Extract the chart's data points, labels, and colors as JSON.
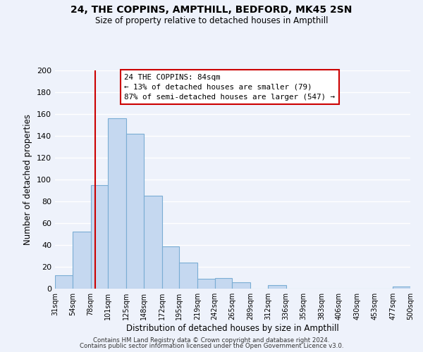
{
  "title": "24, THE COPPINS, AMPTHILL, BEDFORD, MK45 2SN",
  "subtitle": "Size of property relative to detached houses in Ampthill",
  "xlabel": "Distribution of detached houses by size in Ampthill",
  "ylabel": "Number of detached properties",
  "bar_color": "#c5d8f0",
  "bar_edge_color": "#7aadd4",
  "background_color": "#eef2fb",
  "grid_color": "#ffffff",
  "bins": [
    31,
    54,
    78,
    101,
    125,
    148,
    172,
    195,
    219,
    242,
    265,
    289,
    312,
    336,
    359,
    383,
    406,
    430,
    453,
    477,
    500
  ],
  "counts": [
    12,
    52,
    95,
    156,
    142,
    85,
    39,
    24,
    9,
    10,
    6,
    0,
    3,
    0,
    0,
    0,
    0,
    0,
    0,
    2
  ],
  "tick_labels": [
    "31sqm",
    "54sqm",
    "78sqm",
    "101sqm",
    "125sqm",
    "148sqm",
    "172sqm",
    "195sqm",
    "219sqm",
    "242sqm",
    "265sqm",
    "289sqm",
    "312sqm",
    "336sqm",
    "359sqm",
    "383sqm",
    "406sqm",
    "430sqm",
    "453sqm",
    "477sqm",
    "500sqm"
  ],
  "ylim": [
    0,
    200
  ],
  "yticks": [
    0,
    20,
    40,
    60,
    80,
    100,
    120,
    140,
    160,
    180,
    200
  ],
  "red_line_x": 84,
  "annotation_box_text": "24 THE COPPINS: 84sqm\n← 13% of detached houses are smaller (79)\n87% of semi-detached houses are larger (547) →",
  "footer_line1": "Contains HM Land Registry data © Crown copyright and database right 2024.",
  "footer_line2": "Contains public sector information licensed under the Open Government Licence v3.0."
}
